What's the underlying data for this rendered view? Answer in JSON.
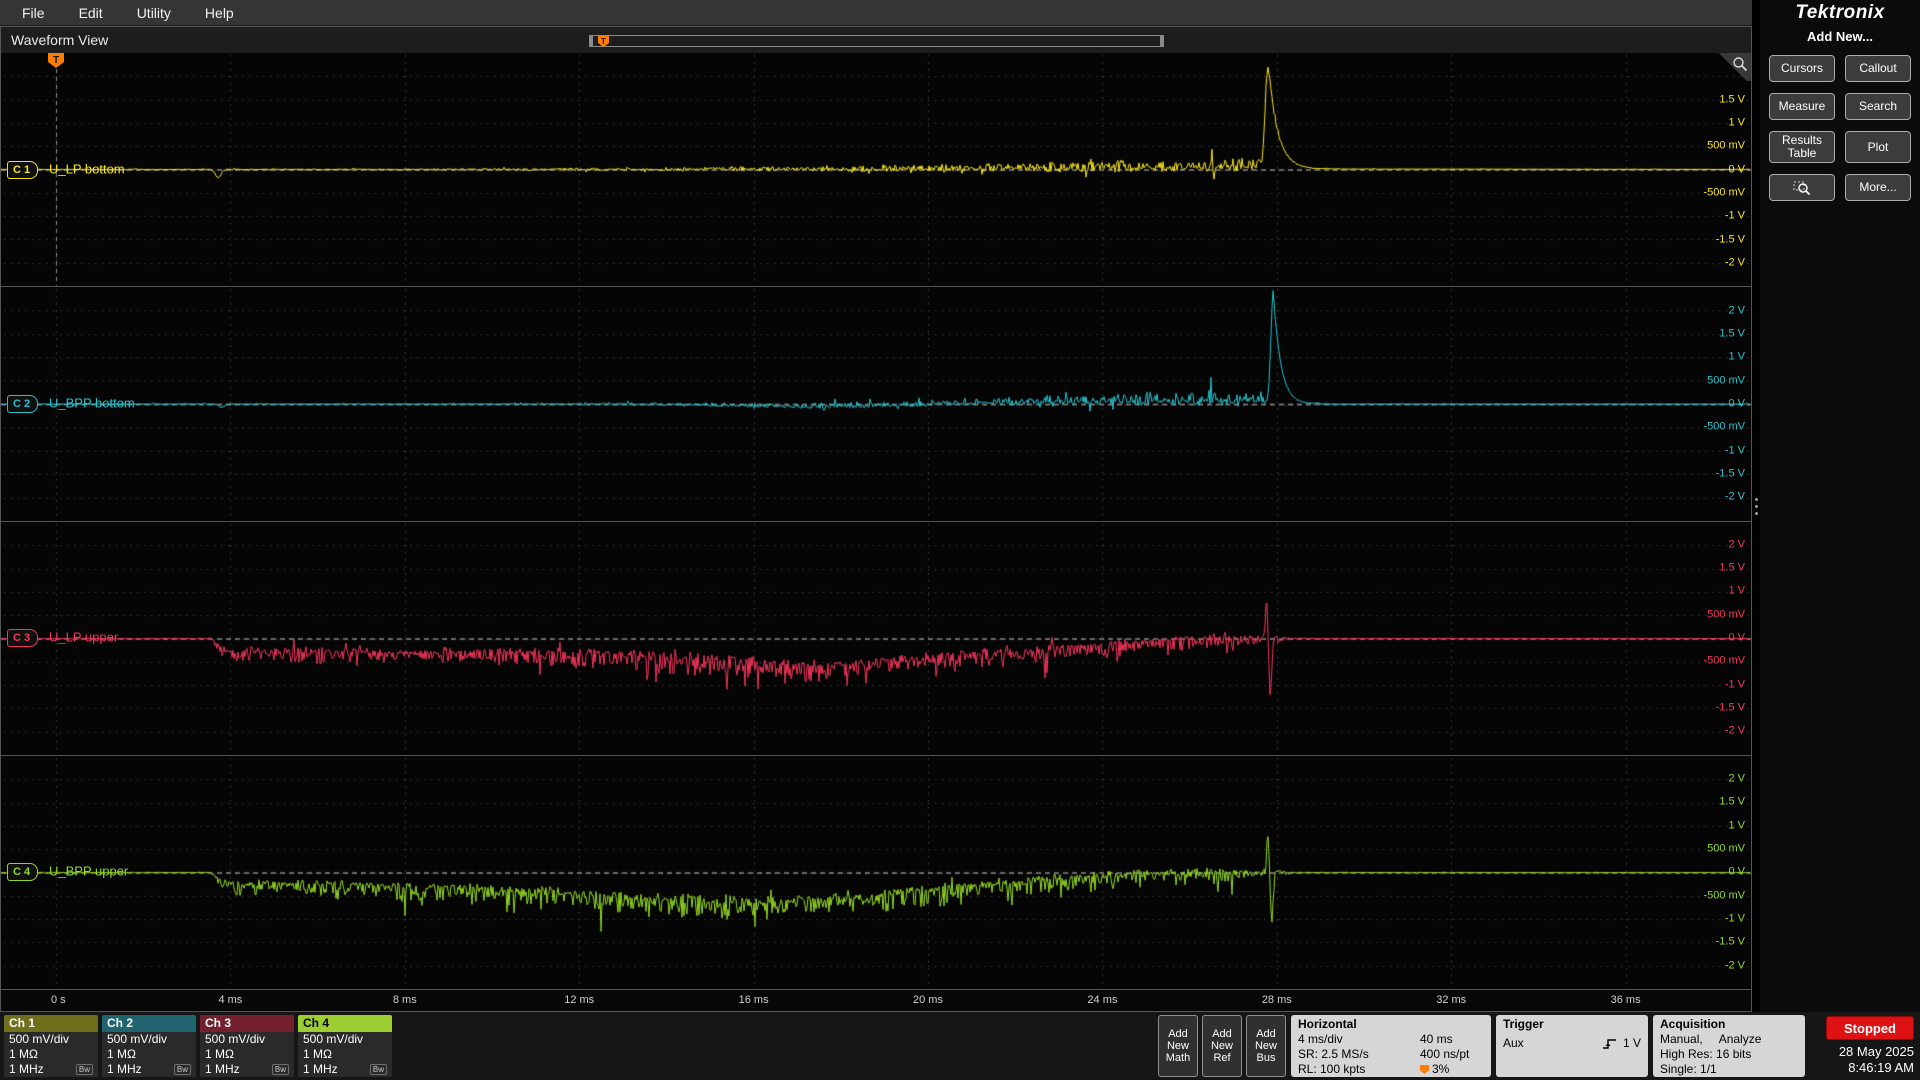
{
  "menu": {
    "items": [
      "File",
      "Edit",
      "Utility",
      "Help"
    ]
  },
  "brand": {
    "name": "Tektronix"
  },
  "waveform_view": {
    "title": "Waveform View"
  },
  "icons": {
    "trigger_flag": "T",
    "bandwidth": "Bw"
  },
  "sidebar": {
    "heading": "Add New...",
    "buttons": [
      {
        "label": "Cursors"
      },
      {
        "label": "Callout"
      },
      {
        "label": "Measure"
      },
      {
        "label": "Search"
      },
      {
        "label": "Results Table"
      },
      {
        "label": "Plot"
      },
      {
        "label": "",
        "icon": "zoom"
      },
      {
        "label": "More..."
      }
    ]
  },
  "channels": [
    {
      "badge": "C 1",
      "name": "U_LP bottom",
      "color": "#f6e41f",
      "header": "Ch 1",
      "header_bg": "#6f6f1c",
      "header_fg": "#ffffff",
      "scale": "500 mV/div",
      "impedance": "1 MΩ",
      "bandwidth": "1 MHz"
    },
    {
      "badge": "C 2",
      "name": "U_BPP bottom",
      "color": "#27c3cd",
      "header": "Ch 2",
      "header_bg": "#1f646e",
      "header_fg": "#ffffff",
      "scale": "500 mV/div",
      "impedance": "1 MΩ",
      "bandwidth": "1 MHz"
    },
    {
      "badge": "C 3",
      "name": "U_LP upper",
      "color": "#f1355c",
      "header": "Ch 3",
      "header_bg": "#74202f",
      "header_fg": "#ffffff",
      "scale": "500 mV/div",
      "impedance": "1 MΩ",
      "bandwidth": "1 MHz"
    },
    {
      "badge": "C 4",
      "name": "U_BPP upper",
      "color": "#93d822",
      "header": "Ch 4",
      "header_bg": "#9ccd32",
      "header_fg": "#000000",
      "scale": "500 mV/div",
      "impedance": "1 MΩ",
      "bandwidth": "1 MHz"
    }
  ],
  "axes": {
    "volt_labels": [
      {
        "v": 2,
        "t": "2 V"
      },
      {
        "v": 1.5,
        "t": "1.5 V"
      },
      {
        "v": 1,
        "t": "1 V"
      },
      {
        "v": 0.5,
        "t": "500 mV"
      },
      {
        "v": 0,
        "t": "0 V"
      },
      {
        "v": -0.5,
        "t": "-500 mV"
      },
      {
        "v": -1,
        "t": "-1 V"
      },
      {
        "v": -1.5,
        "t": "-1.5 V"
      },
      {
        "v": -2,
        "t": "-2 V"
      }
    ],
    "time_labels": [
      "0 s",
      "4 ms",
      "8 ms",
      "12 ms",
      "16 ms",
      "20 ms",
      "24 ms",
      "28 ms",
      "32 ms",
      "36 ms"
    ]
  },
  "waveforms": [
    {
      "seed": 101,
      "bias_pos": 1.15,
      "bias_neg": 0.85,
      "mean": [
        [
          -1,
          0
        ],
        [
          13,
          0
        ],
        [
          18,
          0.01
        ],
        [
          22,
          0.03
        ],
        [
          25,
          0.05
        ],
        [
          27,
          0.08
        ],
        [
          27.6,
          0.1
        ],
        [
          28.1,
          0.01
        ],
        [
          40,
          0
        ]
      ],
      "amp": [
        [
          -1,
          0.008
        ],
        [
          4,
          0.01
        ],
        [
          8,
          0.016
        ],
        [
          12,
          0.025
        ],
        [
          15,
          0.04
        ],
        [
          18,
          0.055
        ],
        [
          21,
          0.075
        ],
        [
          24,
          0.1
        ],
        [
          26,
          0.11
        ],
        [
          27.5,
          0.13
        ],
        [
          27.9,
          0.06
        ],
        [
          28.3,
          0.015
        ],
        [
          28.8,
          0.005
        ],
        [
          40,
          0.004
        ]
      ],
      "dip": {
        "t": 3.72,
        "depth": -0.17,
        "w": 0.09
      },
      "spike": {
        "t": 27.8,
        "a": 2.2,
        "w": 0.09,
        "tau": 0.22
      }
    },
    {
      "seed": 202,
      "bias_pos": 1.2,
      "bias_neg": 0.8,
      "mean": [
        [
          -1,
          0
        ],
        [
          13,
          0
        ],
        [
          15,
          -0.02
        ],
        [
          17,
          -0.05
        ],
        [
          19,
          -0.02
        ],
        [
          21,
          0.03
        ],
        [
          23,
          0.06
        ],
        [
          25,
          0.08
        ],
        [
          27,
          0.1
        ],
        [
          27.7,
          0.08
        ],
        [
          28.3,
          0
        ],
        [
          40,
          0
        ]
      ],
      "amp": [
        [
          -1,
          0.007
        ],
        [
          8,
          0.009
        ],
        [
          12,
          0.015
        ],
        [
          15,
          0.035
        ],
        [
          17,
          0.05
        ],
        [
          19,
          0.065
        ],
        [
          21,
          0.08
        ],
        [
          23,
          0.1
        ],
        [
          25,
          0.11
        ],
        [
          26.5,
          0.12
        ],
        [
          27.6,
          0.09
        ],
        [
          28,
          0.03
        ],
        [
          28.5,
          0.006
        ],
        [
          40,
          0.004
        ]
      ],
      "dip": {
        "t": 3.8,
        "depth": -0.07,
        "w": 0.09
      },
      "spike": {
        "t": 27.92,
        "a": 2.35,
        "w": 0.075,
        "tau": 0.17
      }
    },
    {
      "seed": 303,
      "bias_pos": 0.8,
      "bias_neg": 1.8,
      "mean": [
        [
          -1,
          0
        ],
        [
          3.55,
          0
        ],
        [
          3.75,
          -0.2
        ],
        [
          4.1,
          -0.32
        ],
        [
          5,
          -0.27
        ],
        [
          6.5,
          -0.3
        ],
        [
          8,
          -0.33
        ],
        [
          9.5,
          -0.3
        ],
        [
          11,
          -0.32
        ],
        [
          12.5,
          -0.35
        ],
        [
          14,
          -0.42
        ],
        [
          15.5,
          -0.5
        ],
        [
          17,
          -0.62
        ],
        [
          18,
          -0.58
        ],
        [
          19,
          -0.5
        ],
        [
          20,
          -0.44
        ],
        [
          21,
          -0.36
        ],
        [
          22,
          -0.3
        ],
        [
          23,
          -0.22
        ],
        [
          24,
          -0.15
        ],
        [
          25,
          -0.08
        ],
        [
          26,
          -0.03
        ],
        [
          26.8,
          0
        ],
        [
          40,
          0
        ]
      ],
      "amp": [
        [
          -1,
          0.006
        ],
        [
          3.5,
          0.008
        ],
        [
          4,
          0.1
        ],
        [
          4.5,
          0.13
        ],
        [
          7,
          0.11
        ],
        [
          10,
          0.12
        ],
        [
          13,
          0.14
        ],
        [
          16,
          0.16
        ],
        [
          18,
          0.15
        ],
        [
          20,
          0.14
        ],
        [
          22,
          0.13
        ],
        [
          24,
          0.12
        ],
        [
          26,
          0.11
        ],
        [
          27.3,
          0.1
        ],
        [
          27.9,
          0.06
        ],
        [
          28.3,
          0.015
        ],
        [
          28.8,
          0.005
        ],
        [
          40,
          0.004
        ]
      ],
      "dip": null,
      "spike": {
        "t": 27.77,
        "a": 1.05,
        "w": 0.04,
        "tau": 0.05,
        "a2": -1.35,
        "t2": 27.85,
        "w2": 0.05
      }
    },
    {
      "seed": 404,
      "bias_pos": 0.8,
      "bias_neg": 1.8,
      "mean": [
        [
          -1,
          0
        ],
        [
          3.55,
          0
        ],
        [
          3.8,
          -0.2
        ],
        [
          4.3,
          -0.28
        ],
        [
          5.5,
          -0.25
        ],
        [
          7,
          -0.3
        ],
        [
          8.5,
          -0.35
        ],
        [
          10,
          -0.4
        ],
        [
          11.5,
          -0.46
        ],
        [
          13,
          -0.55
        ],
        [
          14.5,
          -0.62
        ],
        [
          16,
          -0.68
        ],
        [
          17,
          -0.66
        ],
        [
          18,
          -0.58
        ],
        [
          19,
          -0.5
        ],
        [
          20,
          -0.42
        ],
        [
          21,
          -0.33
        ],
        [
          22,
          -0.25
        ],
        [
          23,
          -0.17
        ],
        [
          24,
          -0.1
        ],
        [
          25,
          -0.05
        ],
        [
          26,
          0
        ],
        [
          40,
          0
        ]
      ],
      "amp": [
        [
          -1,
          0.006
        ],
        [
          3.5,
          0.008
        ],
        [
          4.2,
          0.11
        ],
        [
          6,
          0.12
        ],
        [
          9,
          0.13
        ],
        [
          12,
          0.15
        ],
        [
          15,
          0.17
        ],
        [
          17,
          0.16
        ],
        [
          19,
          0.15
        ],
        [
          21,
          0.14
        ],
        [
          23,
          0.13
        ],
        [
          25,
          0.11
        ],
        [
          26.5,
          0.1
        ],
        [
          27.4,
          0.1
        ],
        [
          27.9,
          0.06
        ],
        [
          28.3,
          0.015
        ],
        [
          28.8,
          0.005
        ],
        [
          40,
          0.004
        ]
      ],
      "dip": null,
      "spike": {
        "t": 27.8,
        "a": 0.95,
        "w": 0.04,
        "tau": 0.05,
        "a2": -1.15,
        "t2": 27.88,
        "w2": 0.05
      }
    }
  ],
  "add_new": {
    "math": [
      "Add",
      "New",
      "Math"
    ],
    "ref": [
      "Add",
      "New",
      "Ref"
    ],
    "bus": [
      "Add",
      "New",
      "Bus"
    ]
  },
  "horizontal": {
    "title": "Horizontal",
    "col1": [
      "4 ms/div",
      "SR: 2.5 MS/s",
      "RL: 100 kpts"
    ],
    "col2": [
      "40 ms",
      "400 ns/pt",
      "3%"
    ]
  },
  "trigger": {
    "title": "Trigger",
    "source": "Aux",
    "level": "1 V"
  },
  "acquisition": {
    "title": "Acquisition",
    "line1a": "Manual,",
    "line1b": "Analyze",
    "line2": "High Res: 16 bits",
    "line3": "Single: 1/1"
  },
  "status": {
    "run": "Stopped",
    "date": "28 May 2025",
    "time": "8:46:19 AM"
  }
}
